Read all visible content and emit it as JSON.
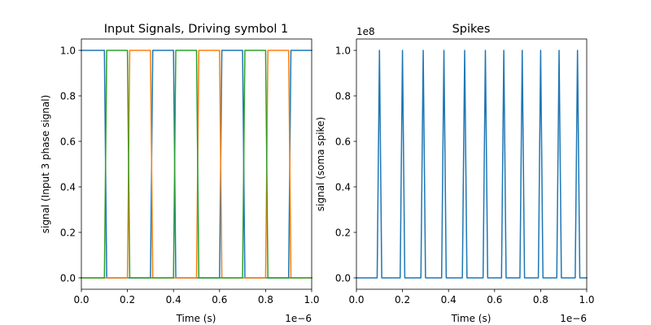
{
  "chart_data": [
    {
      "type": "line",
      "title": "Input Signals, Driving symbol 1",
      "xlabel": "Time (s)",
      "ylabel": "signal (Input 3 phase signal)",
      "x_offset_label": "1e−6",
      "xlim": [
        0,
        1.0
      ],
      "ylim": [
        -0.05,
        1.05
      ],
      "x_ticks": [
        0.0,
        0.2,
        0.4,
        0.6,
        0.8,
        1.0
      ],
      "x_tick_labels": [
        "0.0",
        "0.2",
        "0.4",
        "0.6",
        "0.8",
        "1.0"
      ],
      "y_ticks": [
        0.0,
        0.2,
        0.4,
        0.6,
        0.8,
        1.0
      ],
      "y_tick_labels": [
        "0.0",
        "0.2",
        "0.4",
        "0.6",
        "0.8",
        "1.0"
      ],
      "grid": false,
      "series": [
        {
          "color": "#1f77b4",
          "x": [
            0.0,
            0.1,
            0.11,
            0.3,
            0.31,
            0.4,
            0.41,
            0.6,
            0.61,
            0.7,
            0.71,
            0.9,
            0.91,
            1.0
          ],
          "y": [
            1,
            1,
            0,
            0,
            1,
            1,
            0,
            0,
            1,
            1,
            0,
            0,
            1,
            1
          ]
        },
        {
          "color": "#ff7f0e",
          "x": [
            0.0,
            0.2,
            0.21,
            0.3,
            0.31,
            0.5,
            0.51,
            0.6,
            0.61,
            0.8,
            0.81,
            0.9,
            0.91,
            1.0
          ],
          "y": [
            0,
            0,
            1,
            1,
            0,
            0,
            1,
            1,
            0,
            0,
            1,
            1,
            0,
            0
          ]
        },
        {
          "color": "#2ca02c",
          "x": [
            0.0,
            0.1,
            0.11,
            0.2,
            0.21,
            0.4,
            0.41,
            0.5,
            0.51,
            0.7,
            0.71,
            0.8,
            0.81,
            1.0
          ],
          "y": [
            0,
            0,
            1,
            1,
            0,
            0,
            1,
            1,
            0,
            0,
            1,
            1,
            0,
            0
          ]
        }
      ]
    },
    {
      "type": "line",
      "title": "Spikes",
      "xlabel": "Time (s)",
      "ylabel": "signal (soma spike)",
      "x_offset_label": "1e−6",
      "y_offset_label": "1e8",
      "xlim": [
        0,
        1.0
      ],
      "ylim": [
        -0.05,
        1.05
      ],
      "x_ticks": [
        0.0,
        0.2,
        0.4,
        0.6,
        0.8,
        1.0
      ],
      "x_tick_labels": [
        "0.0",
        "0.2",
        "0.4",
        "0.6",
        "0.8",
        "1.0"
      ],
      "y_ticks": [
        0.0,
        0.2,
        0.4,
        0.6,
        0.8,
        1.0
      ],
      "y_tick_labels": [
        "0.0",
        "0.2",
        "0.4",
        "0.6",
        "0.8",
        "1.0"
      ],
      "grid": false,
      "series": [
        {
          "color": "#1f77b4",
          "spike_times": [
            0.1,
            0.2,
            0.29,
            0.38,
            0.47,
            0.56,
            0.64,
            0.72,
            0.8,
            0.88,
            0.96
          ],
          "spike_width": 0.02,
          "spike_height": 1.0,
          "baseline": 0.0,
          "x_end": 1.0
        }
      ]
    }
  ]
}
